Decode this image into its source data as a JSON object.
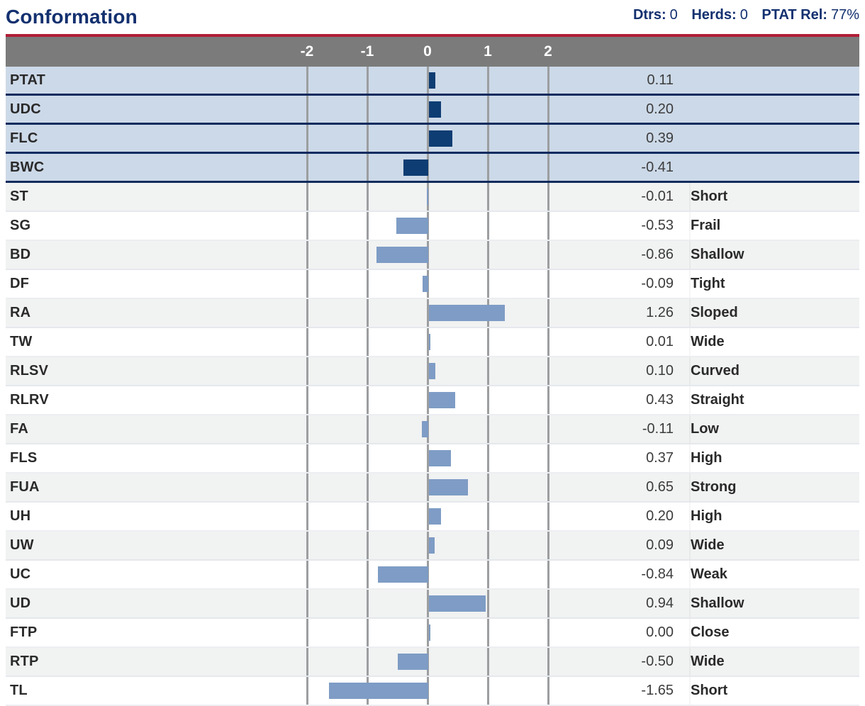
{
  "header": {
    "title": "Conformation",
    "stats": [
      {
        "label": "Dtrs:",
        "value": "0"
      },
      {
        "label": "Herds:",
        "value": "0"
      },
      {
        "label": "PTAT Rel:",
        "value": "77%"
      }
    ]
  },
  "axis": {
    "ticks": [
      "-2",
      "-1",
      "0",
      "1",
      "2"
    ]
  },
  "colors": {
    "title_navy": "#13306f",
    "red_rule": "#b01d36",
    "axis_bar_gray": "#7b7b7b",
    "composite_row_bg": "#ccd9e8",
    "composite_separator": "#0d2b5e",
    "composite_bar": "#0e3d73",
    "linear_bar": "#7e9cc5",
    "linear_row_gray": "#f1f2f2",
    "gridline": "#9c9ea0"
  },
  "chart_data": {
    "type": "bar",
    "title": "Conformation",
    "orientation": "horizontal",
    "x_tick_labels": [
      -2,
      -1,
      0,
      1,
      2
    ],
    "axis_range_labeled": [
      -2,
      2
    ],
    "grid": true,
    "legend": "none",
    "categories": [
      "PTAT",
      "UDC",
      "FLC",
      "BWC",
      "ST",
      "SG",
      "BD",
      "DF",
      "RA",
      "TW",
      "RLSV",
      "RLRV",
      "FA",
      "FLS",
      "FUA",
      "UH",
      "UW",
      "UC",
      "UD",
      "FTP",
      "RTP",
      "TL"
    ],
    "values": [
      0.11,
      0.2,
      0.39,
      -0.41,
      -0.01,
      -0.53,
      -0.86,
      -0.09,
      1.26,
      0.01,
      0.1,
      0.43,
      -0.11,
      0.37,
      0.65,
      0.2,
      0.09,
      -0.84,
      0.94,
      0.0,
      -0.5,
      -1.65
    ],
    "rows": [
      {
        "code": "PTAT",
        "value": 0.11,
        "value_text": "0.11",
        "descriptor": "",
        "group": "composite"
      },
      {
        "code": "UDC",
        "value": 0.2,
        "value_text": "0.20",
        "descriptor": "",
        "group": "composite"
      },
      {
        "code": "FLC",
        "value": 0.39,
        "value_text": "0.39",
        "descriptor": "",
        "group": "composite"
      },
      {
        "code": "BWC",
        "value": -0.41,
        "value_text": "-0.41",
        "descriptor": "",
        "group": "composite"
      },
      {
        "code": "ST",
        "value": -0.01,
        "value_text": "-0.01",
        "descriptor": "Short",
        "group": "linear"
      },
      {
        "code": "SG",
        "value": -0.53,
        "value_text": "-0.53",
        "descriptor": "Frail",
        "group": "linear"
      },
      {
        "code": "BD",
        "value": -0.86,
        "value_text": "-0.86",
        "descriptor": "Shallow",
        "group": "linear"
      },
      {
        "code": "DF",
        "value": -0.09,
        "value_text": "-0.09",
        "descriptor": "Tight",
        "group": "linear"
      },
      {
        "code": "RA",
        "value": 1.26,
        "value_text": "1.26",
        "descriptor": "Sloped",
        "group": "linear"
      },
      {
        "code": "TW",
        "value": 0.01,
        "value_text": "0.01",
        "descriptor": "Wide",
        "group": "linear"
      },
      {
        "code": "RLSV",
        "value": 0.1,
        "value_text": "0.10",
        "descriptor": "Curved",
        "group": "linear"
      },
      {
        "code": "RLRV",
        "value": 0.43,
        "value_text": "0.43",
        "descriptor": "Straight",
        "group": "linear"
      },
      {
        "code": "FA",
        "value": -0.11,
        "value_text": "-0.11",
        "descriptor": "Low",
        "group": "linear"
      },
      {
        "code": "FLS",
        "value": 0.37,
        "value_text": "0.37",
        "descriptor": "High",
        "group": "linear"
      },
      {
        "code": "FUA",
        "value": 0.65,
        "value_text": "0.65",
        "descriptor": "Strong",
        "group": "linear"
      },
      {
        "code": "UH",
        "value": 0.2,
        "value_text": "0.20",
        "descriptor": "High",
        "group": "linear"
      },
      {
        "code": "UW",
        "value": 0.09,
        "value_text": "0.09",
        "descriptor": "Wide",
        "group": "linear"
      },
      {
        "code": "UC",
        "value": -0.84,
        "value_text": "-0.84",
        "descriptor": "Weak",
        "group": "linear"
      },
      {
        "code": "UD",
        "value": 0.94,
        "value_text": "0.94",
        "descriptor": "Shallow",
        "group": "linear"
      },
      {
        "code": "FTP",
        "value": 0.0,
        "value_text": "0.00",
        "descriptor": "Close",
        "group": "linear"
      },
      {
        "code": "RTP",
        "value": -0.5,
        "value_text": "-0.50",
        "descriptor": "Wide",
        "group": "linear"
      },
      {
        "code": "TL",
        "value": -1.65,
        "value_text": "-1.65",
        "descriptor": "Short",
        "group": "linear"
      }
    ]
  }
}
